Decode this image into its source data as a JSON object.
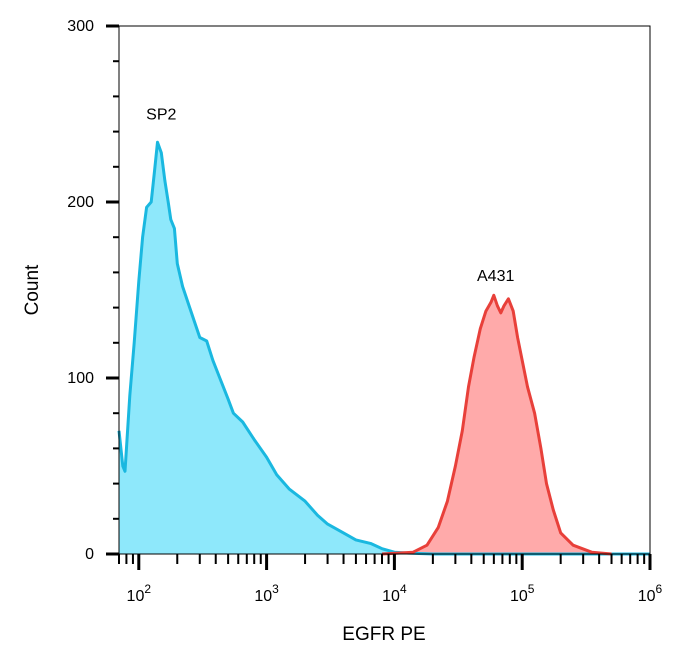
{
  "chart_data": {
    "type": "area",
    "xlabel": "EGFR PE",
    "ylabel": "Count",
    "xscale": "log",
    "xlim": [
      70,
      1000000
    ],
    "ylim": [
      0,
      300
    ],
    "x_ticks": [
      {
        "value": 100,
        "base": "10",
        "exp": "2"
      },
      {
        "value": 1000,
        "base": "10",
        "exp": "3"
      },
      {
        "value": 10000,
        "base": "10",
        "exp": "4"
      },
      {
        "value": 100000,
        "base": "10",
        "exp": "5"
      },
      {
        "value": 1000000,
        "base": "10",
        "exp": "6"
      }
    ],
    "y_ticks": [
      {
        "value": 0,
        "label": "0"
      },
      {
        "value": 100,
        "label": "100"
      },
      {
        "value": 200,
        "label": "200"
      },
      {
        "value": 300,
        "label": "300"
      }
    ],
    "grid": false,
    "series": [
      {
        "name": "SP2",
        "line_color": "#1ab8e0",
        "fill_color": "#8ee8fb",
        "points": [
          [
            70,
            70
          ],
          [
            75,
            50
          ],
          [
            78,
            47
          ],
          [
            85,
            90
          ],
          [
            92,
            120
          ],
          [
            100,
            155
          ],
          [
            107,
            180
          ],
          [
            115,
            197
          ],
          [
            125,
            200
          ],
          [
            133,
            218
          ],
          [
            140,
            234
          ],
          [
            150,
            228
          ],
          [
            160,
            212
          ],
          [
            170,
            200
          ],
          [
            178,
            190
          ],
          [
            190,
            185
          ],
          [
            200,
            165
          ],
          [
            220,
            152
          ],
          [
            250,
            140
          ],
          [
            300,
            123
          ],
          [
            340,
            121
          ],
          [
            380,
            110
          ],
          [
            430,
            100
          ],
          [
            500,
            88
          ],
          [
            550,
            80
          ],
          [
            650,
            75
          ],
          [
            800,
            65
          ],
          [
            1000,
            55
          ],
          [
            1200,
            45
          ],
          [
            1500,
            37
          ],
          [
            2000,
            30
          ],
          [
            2500,
            22
          ],
          [
            3000,
            17
          ],
          [
            4000,
            12
          ],
          [
            5000,
            8
          ],
          [
            6500,
            6
          ],
          [
            8000,
            3
          ],
          [
            10000,
            1
          ],
          [
            13000,
            0.5
          ],
          [
            20000,
            0
          ],
          [
            1000000,
            0
          ]
        ]
      },
      {
        "name": "A431",
        "line_color": "#e8403a",
        "fill_color": "#ffaaaa",
        "points": [
          [
            8000,
            0
          ],
          [
            14000,
            1
          ],
          [
            18000,
            5
          ],
          [
            22000,
            15
          ],
          [
            26000,
            30
          ],
          [
            30000,
            50
          ],
          [
            34000,
            70
          ],
          [
            38000,
            95
          ],
          [
            42000,
            112
          ],
          [
            47000,
            128
          ],
          [
            52000,
            138
          ],
          [
            57000,
            143
          ],
          [
            60000,
            147
          ],
          [
            64000,
            141
          ],
          [
            68000,
            137
          ],
          [
            72000,
            141
          ],
          [
            78000,
            145
          ],
          [
            85000,
            138
          ],
          [
            92000,
            123
          ],
          [
            100000,
            110
          ],
          [
            110000,
            95
          ],
          [
            125000,
            80
          ],
          [
            140000,
            60
          ],
          [
            155000,
            40
          ],
          [
            175000,
            25
          ],
          [
            200000,
            12
          ],
          [
            250000,
            5
          ],
          [
            350000,
            1
          ],
          [
            500000,
            0
          ]
        ]
      }
    ],
    "annotations": [
      {
        "text": "SP2",
        "x": 150,
        "y": 247
      },
      {
        "text": "A431",
        "x": 62000,
        "y": 155
      }
    ]
  }
}
